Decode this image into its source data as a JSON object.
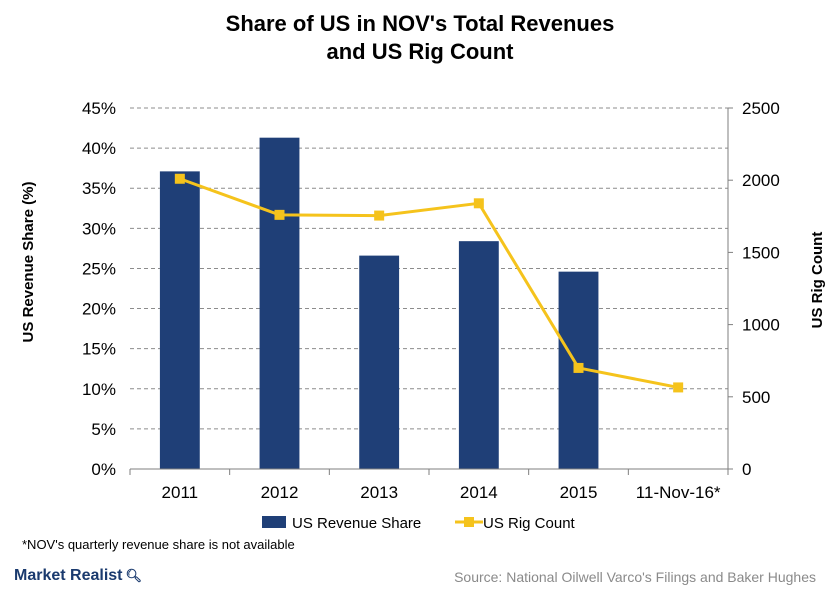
{
  "chart_data": {
    "type": "bar+line",
    "title_lines": [
      "Share of US in NOV's Total Revenues",
      "and US Rig Count"
    ],
    "categories": [
      "2011",
      "2012",
      "2013",
      "2014",
      "2015",
      "11-Nov-16*"
    ],
    "series": [
      {
        "name": "US Revenue Share",
        "kind": "bar",
        "axis": "left",
        "color": "#1f3f77",
        "values": [
          37.1,
          41.3,
          26.6,
          28.4,
          24.6,
          null
        ]
      },
      {
        "name": "US Rig Count",
        "kind": "line",
        "axis": "right",
        "color": "#f5c31c",
        "values": [
          2010,
          1760,
          1755,
          1840,
          700,
          565
        ]
      }
    ],
    "y_left": {
      "label": "US Revenue Share (%)",
      "range": [
        0,
        45
      ],
      "ticks": [
        "0%",
        "5%",
        "10%",
        "15%",
        "20%",
        "25%",
        "30%",
        "35%",
        "40%",
        "45%"
      ]
    },
    "y_right": {
      "label": "US Rig Count",
      "range": [
        0,
        2500
      ],
      "ticks": [
        "0",
        "500",
        "1000",
        "1500",
        "2000",
        "2500"
      ]
    },
    "grid": "horizontal dashed",
    "legend_position": "bottom"
  },
  "footnote": "*NOV's quarterly revenue share is not available",
  "brand": "Market Realist",
  "source": "Source: National Oilwell Varco's Filings and Baker Hughes"
}
